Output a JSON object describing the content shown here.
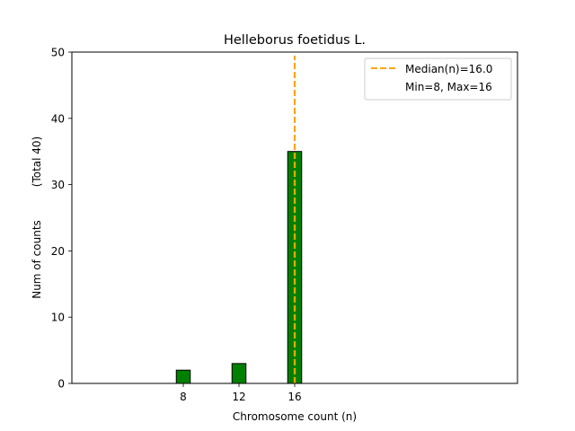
{
  "chart_data": {
    "type": "bar",
    "title": "Helleborus foetidus L.",
    "xlabel": "Chromosome count (n)",
    "ylabel": "Num of counts",
    "ylabel_note": "(Total 40)",
    "x_ticks": [
      "8",
      "12",
      "16"
    ],
    "y_ticks": [
      "0",
      "10",
      "20",
      "30",
      "40",
      "50"
    ],
    "xlim": [
      0,
      32
    ],
    "ylim": [
      0,
      50
    ],
    "bars": [
      {
        "x": 8,
        "value": 2
      },
      {
        "x": 12,
        "value": 3
      },
      {
        "x": 16,
        "value": 35
      }
    ],
    "bar_width": 1,
    "baseline_end": 19.5,
    "bar_color": "#008000",
    "median": 16.0,
    "median_color": "#FFA500",
    "legend": {
      "position": "top-right",
      "entries": [
        "Median(n)=16.0",
        "Min=8, Max=16"
      ]
    }
  }
}
